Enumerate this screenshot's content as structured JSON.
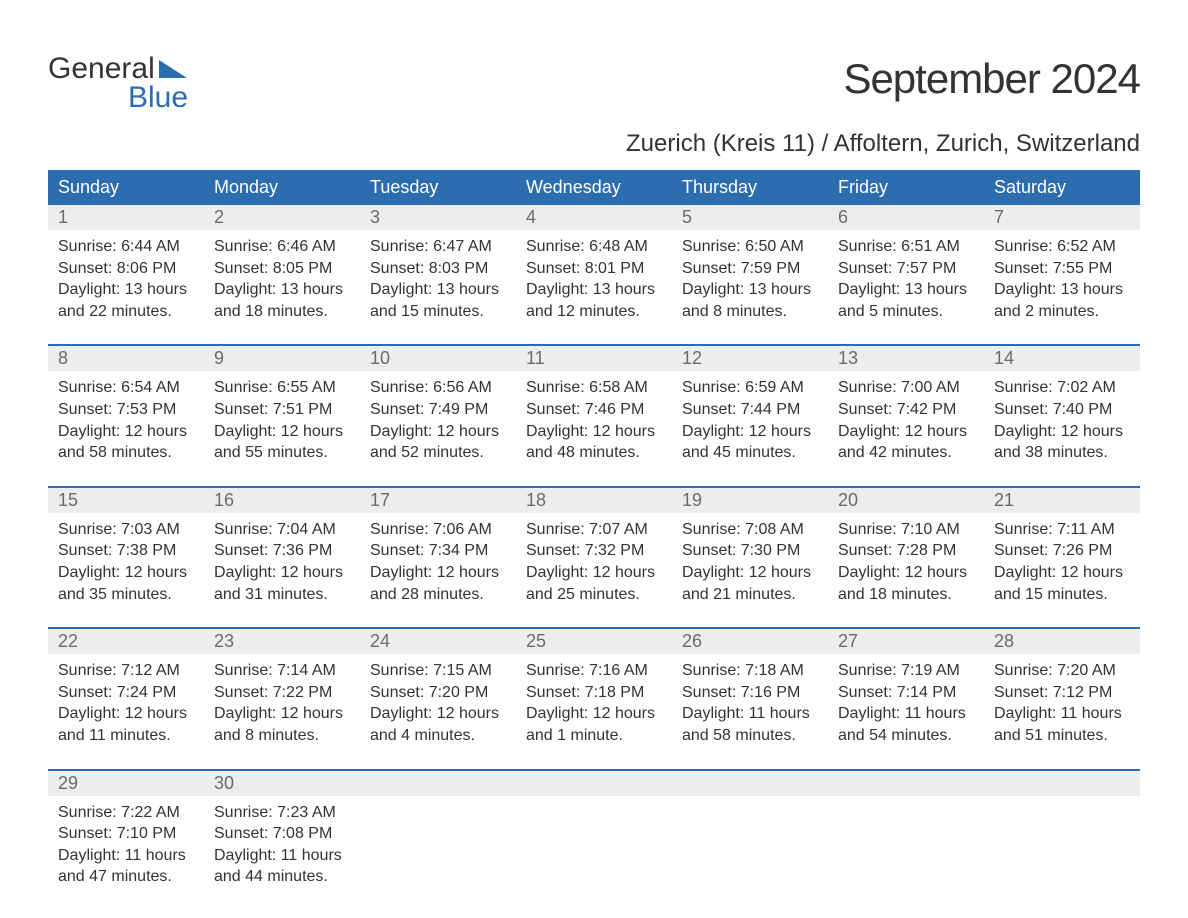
{
  "logo": {
    "line1": "General",
    "line2": "Blue"
  },
  "title": "September 2024",
  "location": "Zuerich (Kreis 11) / Affoltern, Zurich, Switzerland",
  "colors": {
    "header_bg": "#2b6daf",
    "header_text": "#ffffff",
    "daynum_bg": "#ededed",
    "daynum_text": "#6b6b6b",
    "body_text": "#333333",
    "accent": "#2b6daf",
    "page_bg": "#ffffff"
  },
  "days_of_week": [
    "Sunday",
    "Monday",
    "Tuesday",
    "Wednesday",
    "Thursday",
    "Friday",
    "Saturday"
  ],
  "weeks": [
    [
      {
        "n": "1",
        "sr": "Sunrise: 6:44 AM",
        "ss": "Sunset: 8:06 PM",
        "d1": "Daylight: 13 hours",
        "d2": "and 22 minutes."
      },
      {
        "n": "2",
        "sr": "Sunrise: 6:46 AM",
        "ss": "Sunset: 8:05 PM",
        "d1": "Daylight: 13 hours",
        "d2": "and 18 minutes."
      },
      {
        "n": "3",
        "sr": "Sunrise: 6:47 AM",
        "ss": "Sunset: 8:03 PM",
        "d1": "Daylight: 13 hours",
        "d2": "and 15 minutes."
      },
      {
        "n": "4",
        "sr": "Sunrise: 6:48 AM",
        "ss": "Sunset: 8:01 PM",
        "d1": "Daylight: 13 hours",
        "d2": "and 12 minutes."
      },
      {
        "n": "5",
        "sr": "Sunrise: 6:50 AM",
        "ss": "Sunset: 7:59 PM",
        "d1": "Daylight: 13 hours",
        "d2": "and 8 minutes."
      },
      {
        "n": "6",
        "sr": "Sunrise: 6:51 AM",
        "ss": "Sunset: 7:57 PM",
        "d1": "Daylight: 13 hours",
        "d2": "and 5 minutes."
      },
      {
        "n": "7",
        "sr": "Sunrise: 6:52 AM",
        "ss": "Sunset: 7:55 PM",
        "d1": "Daylight: 13 hours",
        "d2": "and 2 minutes."
      }
    ],
    [
      {
        "n": "8",
        "sr": "Sunrise: 6:54 AM",
        "ss": "Sunset: 7:53 PM",
        "d1": "Daylight: 12 hours",
        "d2": "and 58 minutes."
      },
      {
        "n": "9",
        "sr": "Sunrise: 6:55 AM",
        "ss": "Sunset: 7:51 PM",
        "d1": "Daylight: 12 hours",
        "d2": "and 55 minutes."
      },
      {
        "n": "10",
        "sr": "Sunrise: 6:56 AM",
        "ss": "Sunset: 7:49 PM",
        "d1": "Daylight: 12 hours",
        "d2": "and 52 minutes."
      },
      {
        "n": "11",
        "sr": "Sunrise: 6:58 AM",
        "ss": "Sunset: 7:46 PM",
        "d1": "Daylight: 12 hours",
        "d2": "and 48 minutes."
      },
      {
        "n": "12",
        "sr": "Sunrise: 6:59 AM",
        "ss": "Sunset: 7:44 PM",
        "d1": "Daylight: 12 hours",
        "d2": "and 45 minutes."
      },
      {
        "n": "13",
        "sr": "Sunrise: 7:00 AM",
        "ss": "Sunset: 7:42 PM",
        "d1": "Daylight: 12 hours",
        "d2": "and 42 minutes."
      },
      {
        "n": "14",
        "sr": "Sunrise: 7:02 AM",
        "ss": "Sunset: 7:40 PM",
        "d1": "Daylight: 12 hours",
        "d2": "and 38 minutes."
      }
    ],
    [
      {
        "n": "15",
        "sr": "Sunrise: 7:03 AM",
        "ss": "Sunset: 7:38 PM",
        "d1": "Daylight: 12 hours",
        "d2": "and 35 minutes."
      },
      {
        "n": "16",
        "sr": "Sunrise: 7:04 AM",
        "ss": "Sunset: 7:36 PM",
        "d1": "Daylight: 12 hours",
        "d2": "and 31 minutes."
      },
      {
        "n": "17",
        "sr": "Sunrise: 7:06 AM",
        "ss": "Sunset: 7:34 PM",
        "d1": "Daylight: 12 hours",
        "d2": "and 28 minutes."
      },
      {
        "n": "18",
        "sr": "Sunrise: 7:07 AM",
        "ss": "Sunset: 7:32 PM",
        "d1": "Daylight: 12 hours",
        "d2": "and 25 minutes."
      },
      {
        "n": "19",
        "sr": "Sunrise: 7:08 AM",
        "ss": "Sunset: 7:30 PM",
        "d1": "Daylight: 12 hours",
        "d2": "and 21 minutes."
      },
      {
        "n": "20",
        "sr": "Sunrise: 7:10 AM",
        "ss": "Sunset: 7:28 PM",
        "d1": "Daylight: 12 hours",
        "d2": "and 18 minutes."
      },
      {
        "n": "21",
        "sr": "Sunrise: 7:11 AM",
        "ss": "Sunset: 7:26 PM",
        "d1": "Daylight: 12 hours",
        "d2": "and 15 minutes."
      }
    ],
    [
      {
        "n": "22",
        "sr": "Sunrise: 7:12 AM",
        "ss": "Sunset: 7:24 PM",
        "d1": "Daylight: 12 hours",
        "d2": "and 11 minutes."
      },
      {
        "n": "23",
        "sr": "Sunrise: 7:14 AM",
        "ss": "Sunset: 7:22 PM",
        "d1": "Daylight: 12 hours",
        "d2": "and 8 minutes."
      },
      {
        "n": "24",
        "sr": "Sunrise: 7:15 AM",
        "ss": "Sunset: 7:20 PM",
        "d1": "Daylight: 12 hours",
        "d2": "and 4 minutes."
      },
      {
        "n": "25",
        "sr": "Sunrise: 7:16 AM",
        "ss": "Sunset: 7:18 PM",
        "d1": "Daylight: 12 hours",
        "d2": "and 1 minute."
      },
      {
        "n": "26",
        "sr": "Sunrise: 7:18 AM",
        "ss": "Sunset: 7:16 PM",
        "d1": "Daylight: 11 hours",
        "d2": "and 58 minutes."
      },
      {
        "n": "27",
        "sr": "Sunrise: 7:19 AM",
        "ss": "Sunset: 7:14 PM",
        "d1": "Daylight: 11 hours",
        "d2": "and 54 minutes."
      },
      {
        "n": "28",
        "sr": "Sunrise: 7:20 AM",
        "ss": "Sunset: 7:12 PM",
        "d1": "Daylight: 11 hours",
        "d2": "and 51 minutes."
      }
    ],
    [
      {
        "n": "29",
        "sr": "Sunrise: 7:22 AM",
        "ss": "Sunset: 7:10 PM",
        "d1": "Daylight: 11 hours",
        "d2": "and 47 minutes."
      },
      {
        "n": "30",
        "sr": "Sunrise: 7:23 AM",
        "ss": "Sunset: 7:08 PM",
        "d1": "Daylight: 11 hours",
        "d2": "and 44 minutes."
      },
      null,
      null,
      null,
      null,
      null
    ]
  ]
}
